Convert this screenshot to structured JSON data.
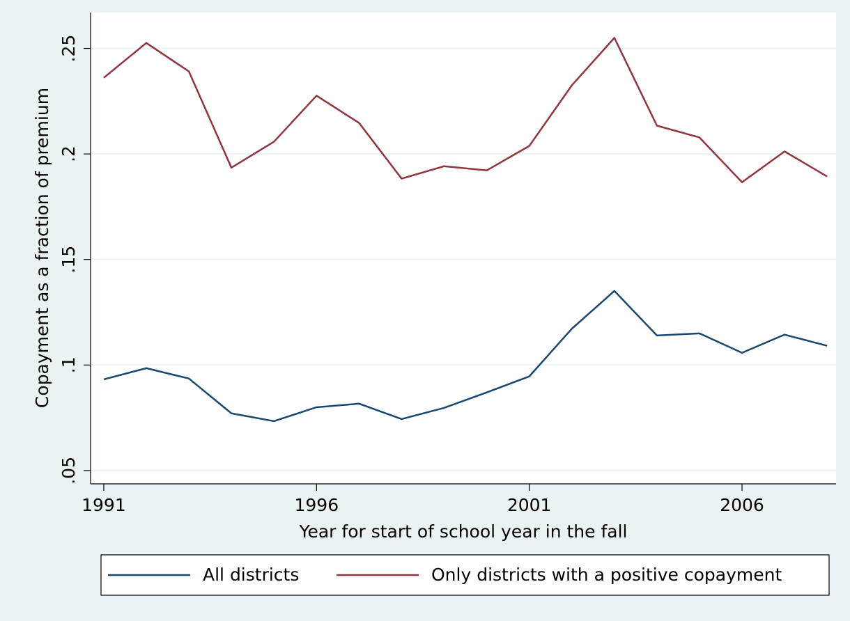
{
  "chart_data": {
    "type": "line",
    "x_label": "Year for start of school year in the fall",
    "y_label": "Copayment as a fraction of premium",
    "x": [
      1991,
      1992,
      1993,
      1994,
      1995,
      1996,
      1997,
      1998,
      1999,
      2000,
      2001,
      2002,
      2003,
      2004,
      2005,
      2006,
      2007,
      2008
    ],
    "series": [
      {
        "name": "All districts",
        "color": "#1a476f",
        "values": [
          0.0932,
          0.0985,
          0.0936,
          0.0771,
          0.0734,
          0.08,
          0.0817,
          0.0744,
          0.0797,
          0.087,
          0.0946,
          0.1172,
          0.1351,
          0.114,
          0.115,
          0.1058,
          0.1144,
          0.1091
        ]
      },
      {
        "name": "Only districts with a positive copayment",
        "color": "#90353b",
        "values": [
          0.2361,
          0.2526,
          0.2391,
          0.1935,
          0.2058,
          0.2276,
          0.2147,
          0.1883,
          0.1942,
          0.1922,
          0.2038,
          0.2325,
          0.255,
          0.2134,
          0.2078,
          0.1866,
          0.2012,
          0.1893
        ]
      }
    ],
    "xlim": [
      1990.69,
      2008.21
    ],
    "xticks": [
      1991,
      1996,
      2001,
      2006
    ],
    "ylim": [
      0.0437,
      0.267
    ],
    "yticks": [
      {
        "value": 0.05,
        "label": ".05"
      },
      {
        "value": 0.1,
        "label": ".1"
      },
      {
        "value": 0.15,
        "label": ".15"
      },
      {
        "value": 0.2,
        "label": ".2"
      },
      {
        "value": 0.25,
        "label": ".25"
      }
    ],
    "grid": true,
    "legend": "bottom"
  }
}
